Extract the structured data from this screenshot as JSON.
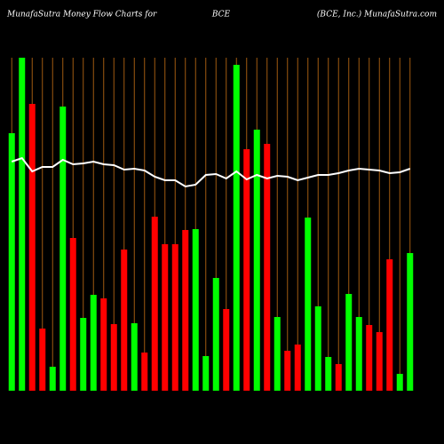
{
  "chart_data": {
    "type": "bar",
    "title": "MunafaSutra  Money Flow  Charts for",
    "subtitle": "BCE",
    "source": "(BCE, Inc.) MunafaSutra.com",
    "categories": [
      null,
      null,
      null,
      null,
      null,
      null,
      null,
      null,
      null,
      null,
      null,
      null,
      null,
      null,
      null,
      null,
      null,
      null,
      null,
      null,
      null,
      null,
      null,
      null,
      null,
      null,
      null,
      null,
      null,
      null,
      null,
      null,
      null,
      null,
      null,
      null,
      null,
      null,
      null,
      null
    ],
    "values": [
      290,
      375,
      323,
      70,
      27,
      320,
      172,
      82,
      108,
      104,
      75,
      159,
      76,
      43,
      196,
      165,
      165,
      181,
      182,
      39,
      127,
      92,
      367,
      272,
      294,
      278,
      83,
      45,
      52,
      195,
      95,
      38,
      30,
      109,
      83,
      74,
      66,
      148,
      19,
      155
    ],
    "colors": [
      "#00ff00",
      "#00ff00",
      "#ff0000",
      "#ff0000",
      "#00ff00",
      "#00ff00",
      "#ff0000",
      "#00ff00",
      "#00ff00",
      "#ff0000",
      "#ff0000",
      "#ff0000",
      "#00ff00",
      "#ff0000",
      "#ff0000",
      "#ff0000",
      "#ff0000",
      "#ff0000",
      "#00ff00",
      "#00ff00",
      "#00ff00",
      "#ff0000",
      "#00ff00",
      "#ff0000",
      "#00ff00",
      "#ff0000",
      "#00ff00",
      "#ff0000",
      "#ff0000",
      "#00ff00",
      "#00ff00",
      "#00ff00",
      "#ff0000",
      "#00ff00",
      "#00ff00",
      "#ff0000",
      "#ff0000",
      "#ff0000",
      "#00ff00",
      "#00ff00"
    ],
    "line": {
      "color": "#ffffff",
      "values": [
        258,
        262,
        247,
        252,
        252,
        260,
        255,
        256,
        258,
        255,
        254,
        249,
        250,
        248,
        241,
        237,
        237,
        230,
        232,
        243,
        244,
        239,
        247,
        238,
        243,
        239,
        242,
        241,
        237,
        240,
        243,
        243,
        245,
        248,
        250,
        249,
        248,
        245,
        246,
        250
      ]
    },
    "grid_color": "#a05a10",
    "ylim": [
      0,
      380
    ]
  }
}
